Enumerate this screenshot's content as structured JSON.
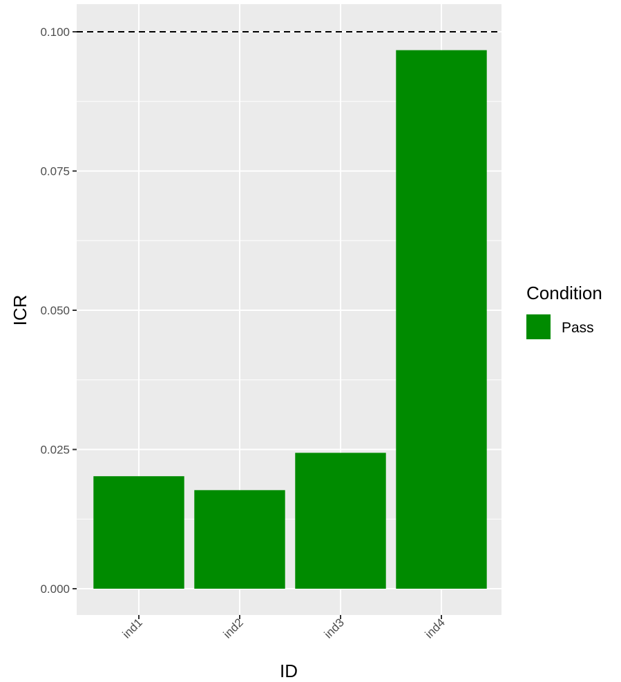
{
  "chart_data": {
    "type": "bar",
    "categories": [
      "ind1",
      "ind2",
      "ind3",
      "ind4"
    ],
    "series": [
      {
        "name": "Pass",
        "values": [
          0.0202,
          0.0177,
          0.0244,
          0.0967
        ]
      }
    ],
    "xlabel": "ID",
    "ylabel": "ICR",
    "ylim": [
      0,
      0.1055
    ],
    "yticks": [
      0.0,
      0.025,
      0.05,
      0.075,
      0.1
    ],
    "ytick_labels": [
      "0.000",
      "0.025",
      "0.050",
      "0.075",
      "0.100"
    ],
    "reference_line": {
      "y": 0.1,
      "style": "dashed",
      "color": "#000000"
    },
    "grid": true,
    "legend": {
      "title": "Condition",
      "position": "right",
      "entries": [
        "Pass"
      ]
    },
    "colors": {
      "bar": "#008B00",
      "panel_background": "#EBEBEB",
      "grid": "#FFFFFF",
      "text": "#4D4D4D"
    }
  }
}
